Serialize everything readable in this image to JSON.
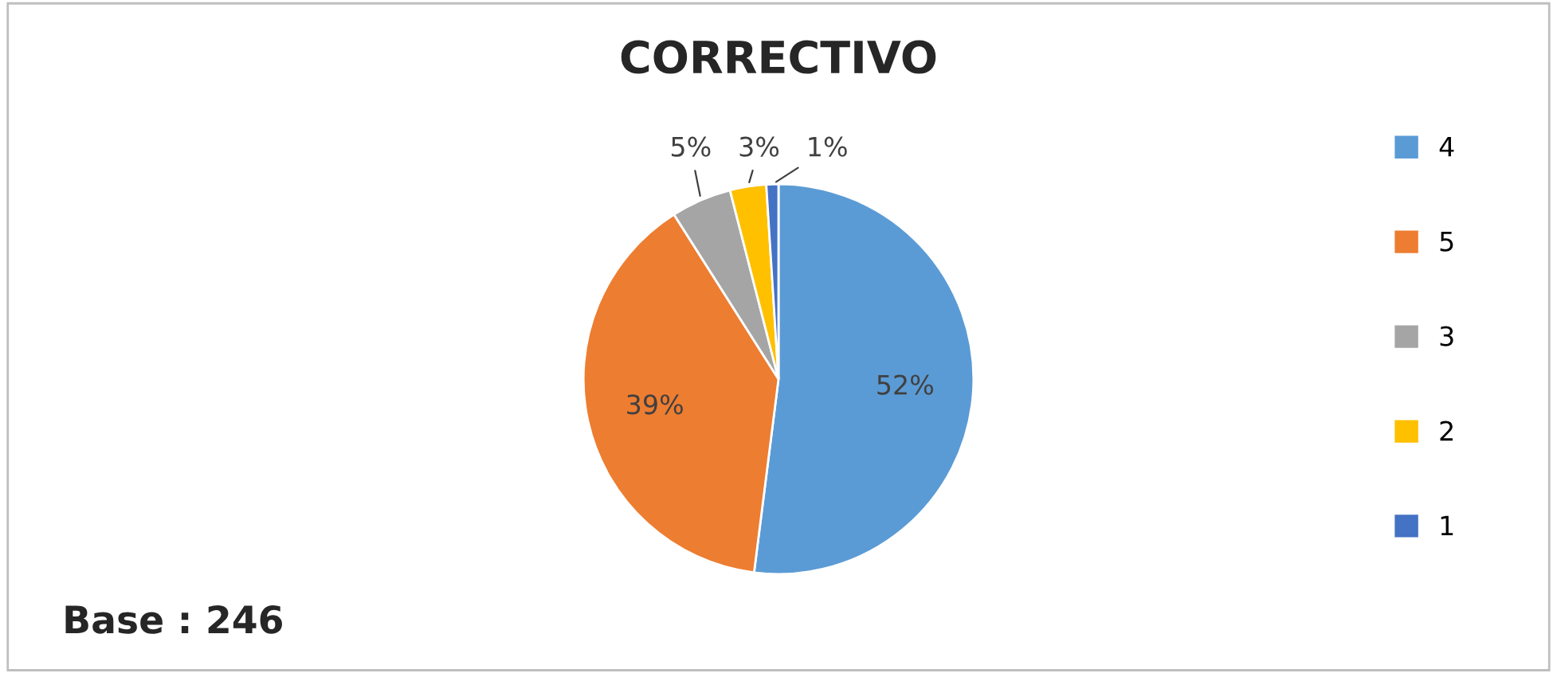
{
  "chart_data": {
    "type": "pie",
    "title": "CORRECTIVO",
    "categories": [
      "4",
      "5",
      "3",
      "2",
      "1"
    ],
    "values": [
      52,
      39,
      5,
      3,
      1
    ],
    "colors": [
      "#5b9bd5",
      "#ed7d31",
      "#a5a5a5",
      "#ffc000",
      "#4472c4"
    ],
    "value_labels": [
      "52%",
      "39%",
      "5%",
      "3%",
      "1%"
    ],
    "legend": "right",
    "annotations": [
      "Base : 246"
    ]
  }
}
